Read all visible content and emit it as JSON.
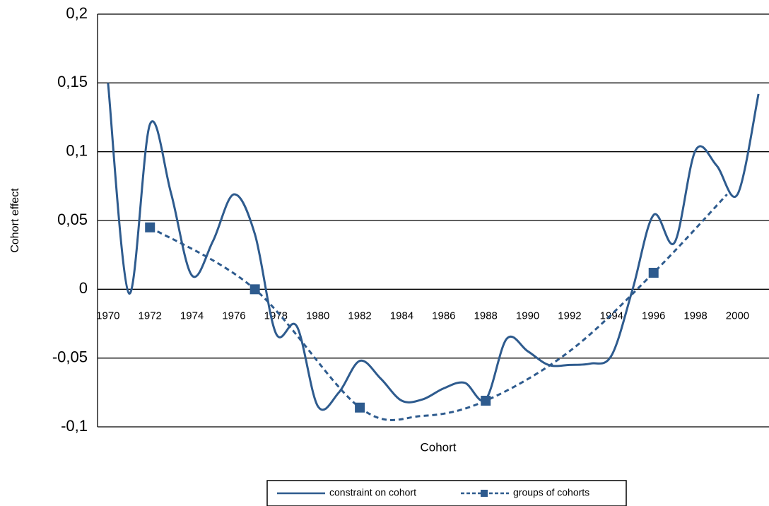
{
  "chart_data": {
    "type": "line",
    "x_label": "Cohort",
    "y_label": "Cohort effect",
    "xlim": [
      1969.5,
      2001.5
    ],
    "xticks": [
      1970,
      1972,
      1974,
      1976,
      1978,
      1980,
      1982,
      1984,
      1986,
      1988,
      1990,
      1992,
      1994,
      1996,
      1998,
      2000
    ],
    "ylim": [
      -0.1,
      0.2
    ],
    "yticks": [
      {
        "value": -0.1,
        "label": "-0,1"
      },
      {
        "value": -0.05,
        "label": "-0,05"
      },
      0,
      {
        "value": 0.05,
        "label": "0,05"
      },
      {
        "value": 0.1,
        "label": "0,1"
      },
      {
        "value": 0.15,
        "label": "0,15"
      },
      {
        "value": 0.2,
        "label": "0,2"
      }
    ],
    "grid": true,
    "smooth": true,
    "legend": "bottom",
    "series": [
      {
        "name": "constraint on cohort",
        "color": "#2e5b8e",
        "dash": false,
        "x": [
          1970,
          1971,
          1972,
          1973,
          1974,
          1975,
          1976,
          1977,
          1978,
          1979,
          1980,
          1981,
          1982,
          1983,
          1984,
          1985,
          1986,
          1987,
          1988,
          1989,
          1990,
          1991,
          1992,
          1993,
          1994,
          1995,
          1996,
          1997,
          1998,
          1999,
          2000,
          2001
        ],
        "values": [
          0.15,
          -0.003,
          0.12,
          0.07,
          0.01,
          0.035,
          0.069,
          0.04,
          -0.032,
          -0.027,
          -0.085,
          -0.075,
          -0.052,
          -0.065,
          -0.081,
          -0.08,
          -0.072,
          -0.068,
          -0.08,
          -0.036,
          -0.045,
          -0.055,
          -0.055,
          -0.054,
          -0.048,
          0.0,
          0.054,
          0.034,
          0.101,
          0.09,
          0.069,
          0.142
        ],
        "marker_shown": [
          false,
          false,
          false,
          false,
          false,
          false,
          false,
          false,
          false,
          false,
          false,
          false,
          false,
          false,
          false,
          false,
          false,
          false,
          false,
          false,
          false,
          false,
          false,
          false,
          false,
          false,
          false,
          false,
          false,
          false,
          false,
          false
        ]
      },
      {
        "name": "groups of cohorts",
        "color": "#2e5b8e",
        "dash": true,
        "x": [
          1972,
          1977,
          1982,
          1985,
          1988,
          1992,
          1996,
          1999.5
        ],
        "values": [
          0.045,
          0.0,
          -0.086,
          -0.092,
          -0.081,
          -0.045,
          0.012,
          0.069
        ],
        "marker_shown": [
          true,
          true,
          true,
          false,
          true,
          false,
          true,
          false
        ]
      }
    ]
  }
}
